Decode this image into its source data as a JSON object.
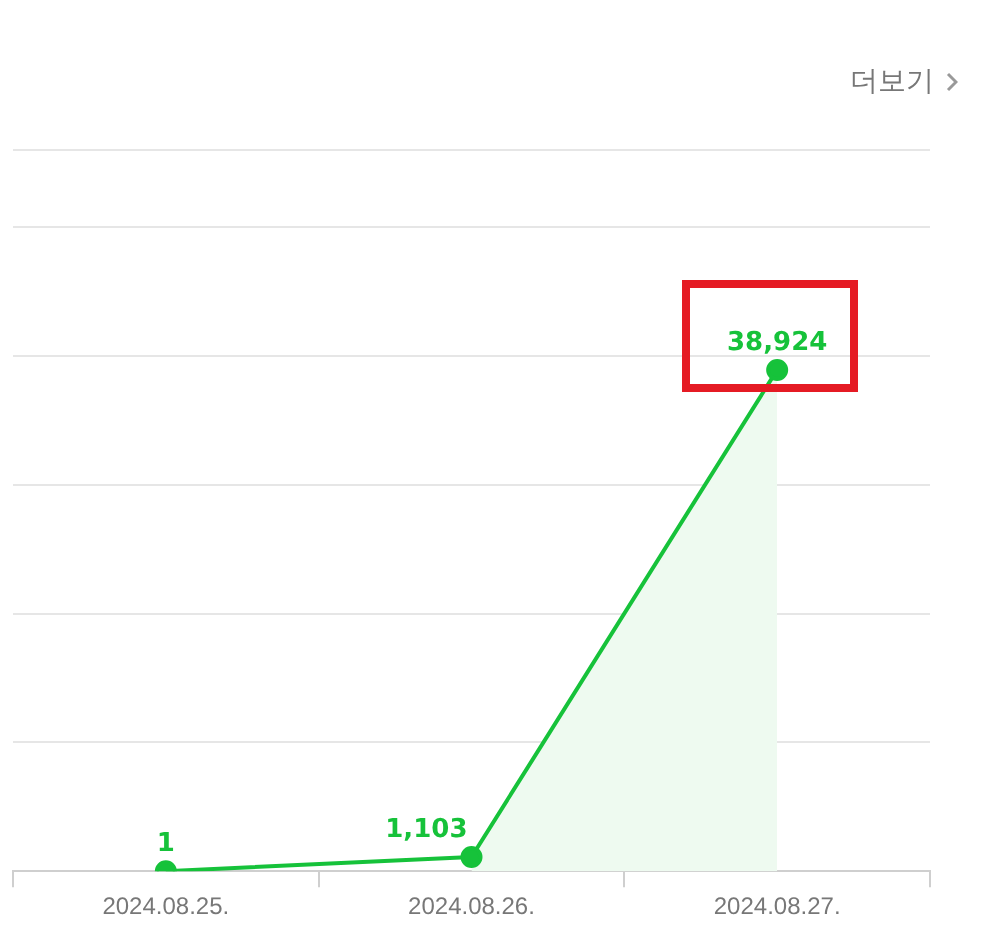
{
  "chart_data": {
    "type": "line",
    "categories": [
      "2024.08.25.",
      "2024.08.26.",
      "2024.08.27."
    ],
    "series": [
      {
        "color": "#16c23a",
        "values": [
          1,
          1103,
          38924
        ],
        "value_labels": [
          "1",
          "1,103",
          "38,924"
        ],
        "marker": "circle"
      },
      {
        "type": "area",
        "color": "#eefaf0",
        "values": [
          null,
          1103,
          38924
        ],
        "marker": "none"
      }
    ],
    "ylim": [
      0,
      56000
    ],
    "yticks": [
      {
        "value": 0,
        "label": null
      },
      {
        "value": 10000,
        "label": null
      },
      {
        "value": 20000,
        "label": null
      },
      {
        "value": 30000,
        "label": null
      },
      {
        "value": 40000,
        "label": null
      },
      {
        "value": 50000,
        "label": null
      }
    ],
    "tick_labels": "x",
    "grid": "y",
    "legend": false,
    "annotations": [
      "더보기"
    ]
  }
}
